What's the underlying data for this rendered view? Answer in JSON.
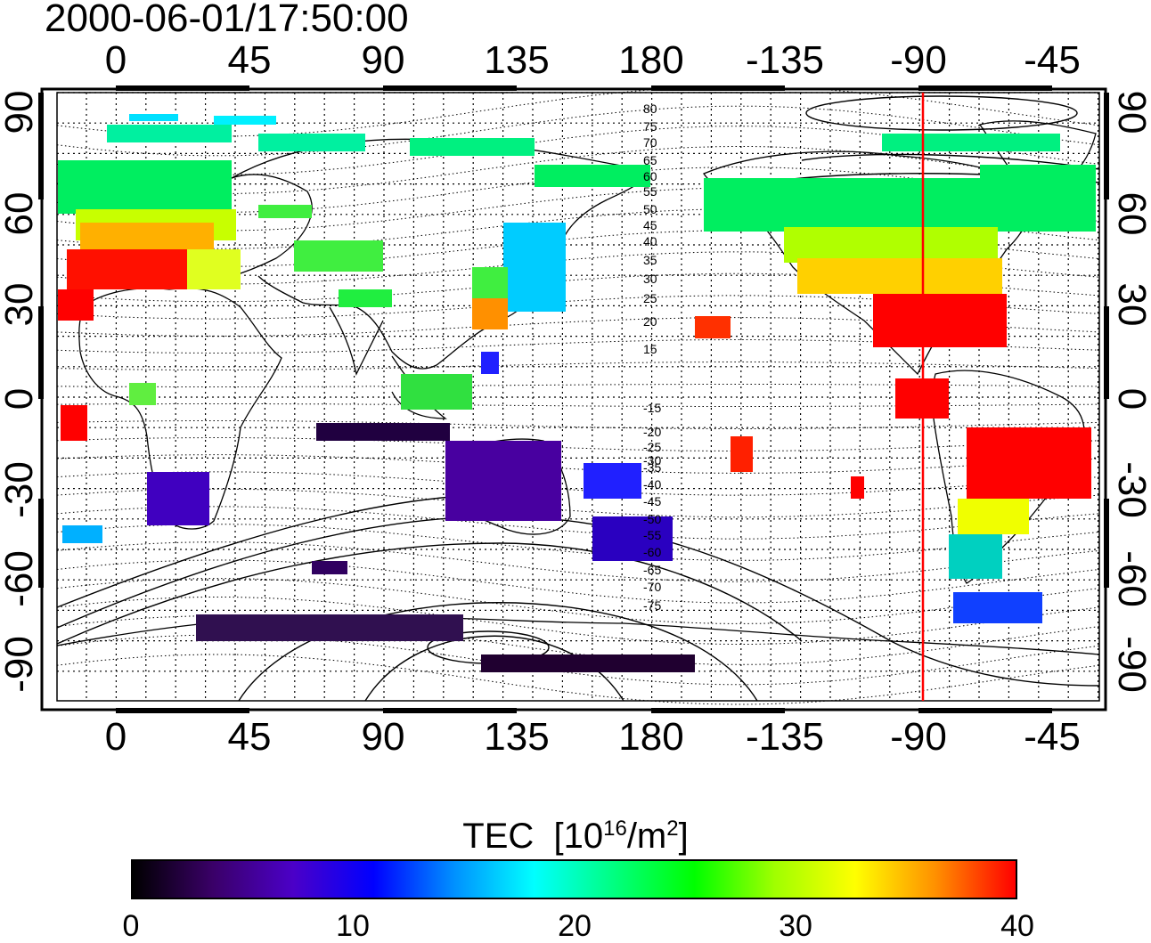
{
  "title": "2000-06-01/17:50:00",
  "top_lon_ticks": [
    "0",
    "45",
    "90",
    "135",
    "180",
    "-135",
    "-90",
    "-45"
  ],
  "bottom_lon_ticks": [
    "0",
    "45",
    "90",
    "135",
    "180",
    "-135",
    "-90",
    "-45"
  ],
  "lat_ticks": [
    "90",
    "60",
    "30",
    "0",
    "-30",
    "-60",
    "-90"
  ],
  "contour_labels": [
    "80",
    "75",
    "70",
    "65",
    "60",
    "55",
    "50",
    "45",
    "40",
    "35",
    "30",
    "25",
    "20",
    "15",
    "-15",
    "-20",
    "-25",
    "-30",
    "-35",
    "-40",
    "-45",
    "-50",
    "-55",
    "-60",
    "-65",
    "-70",
    "-75"
  ],
  "colorbar": {
    "label_text": "TEC",
    "label_unit_prefix": "[10",
    "label_unit_exp": "16",
    "label_unit_mid": "/m",
    "label_unit_exp2": "2",
    "label_unit_suffix": "]",
    "ticks": [
      "0",
      "10",
      "20",
      "30",
      "40"
    ],
    "colors": [
      "#000000",
      "#3a0068",
      "#4b00c8",
      "#0000ff",
      "#0090ff",
      "#00ffff",
      "#00ff80",
      "#00ff00",
      "#a0ff00",
      "#ffff00",
      "#ff9000",
      "#ff0000"
    ]
  },
  "marker": {
    "longitude": "-87",
    "color": "#ff0000"
  }
}
